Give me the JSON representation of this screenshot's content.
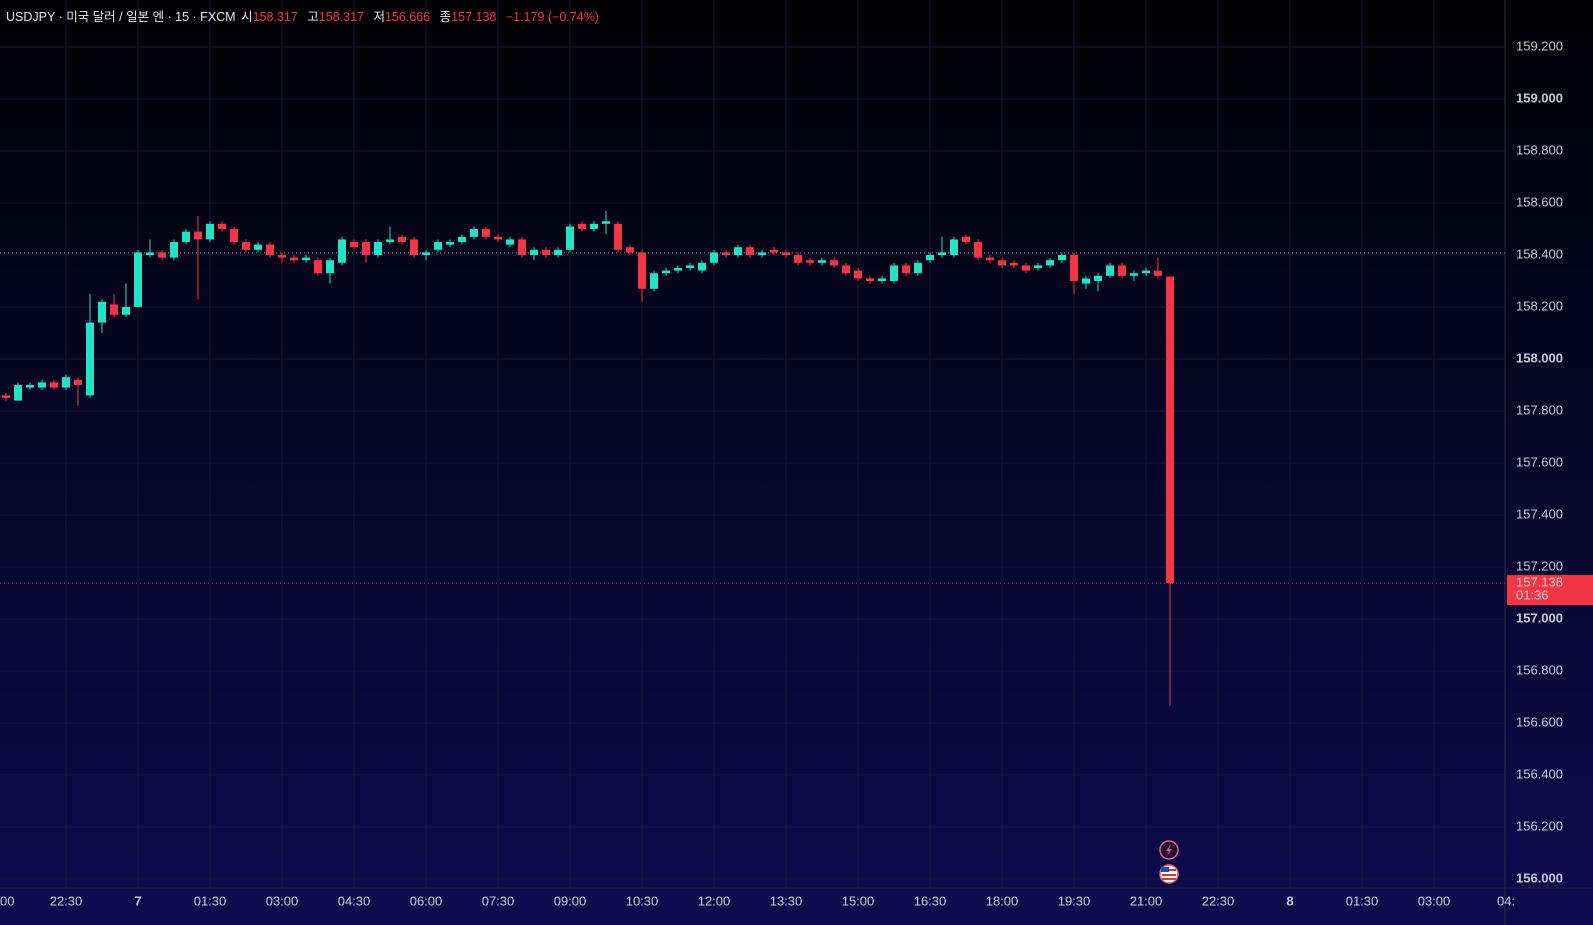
{
  "header": {
    "symbol": "USDJPY · 미국 달러 / 일본 엔 · 15 · FXCM",
    "open_label": "시",
    "high_label": "고",
    "low_label": "저",
    "close_label": "종",
    "change": "−1.179 (−0.74%)"
  },
  "chart_data": {
    "type": "candlestick",
    "up_color": "#22e3c5",
    "down_color": "#f23645",
    "grid": true,
    "x": [
      -2.75,
      -2.5,
      -2.25,
      -2,
      -1.75,
      -1.5,
      -1.25,
      -1,
      -0.75,
      -0.5,
      -0.25,
      0,
      0.25,
      0.5,
      0.75,
      1,
      1.25,
      1.5,
      1.75,
      2,
      2.25,
      2.5,
      2.75,
      3,
      3.25,
      3.5,
      3.75,
      4,
      4.25,
      4.5,
      4.75,
      5,
      5.25,
      5.5,
      5.75,
      6,
      6.25,
      6.5,
      6.75,
      7,
      7.25,
      7.5,
      7.75,
      8,
      8.25,
      8.5,
      8.75,
      9,
      9.25,
      9.5,
      9.75,
      10,
      10.25,
      10.5,
      10.75,
      11,
      11.25,
      11.5,
      11.75,
      12,
      12.25,
      12.5,
      12.75,
      13,
      13.25,
      13.5,
      13.75,
      14,
      14.25,
      14.5,
      14.75,
      15,
      15.25,
      15.5,
      15.75,
      16,
      16.25,
      16.5,
      16.75,
      17,
      17.25,
      17.5,
      17.75,
      18,
      18.25,
      18.5,
      18.75,
      19,
      19.25,
      19.5,
      19.75,
      20,
      20.25,
      20.5,
      20.75,
      21,
      21.25,
      21.5
    ],
    "open": [
      157.86,
      157.84,
      157.89,
      157.89,
      157.91,
      157.89,
      157.92,
      157.86,
      158.14,
      158.21,
      158.17,
      158.2,
      158.4,
      158.41,
      158.39,
      158.45,
      158.49,
      158.46,
      158.52,
      158.5,
      158.45,
      158.42,
      158.44,
      158.4,
      158.39,
      158.38,
      158.38,
      158.33,
      158.37,
      158.45,
      158.45,
      158.4,
      158.45,
      158.47,
      158.46,
      158.4,
      158.42,
      158.44,
      158.45,
      158.47,
      158.5,
      158.47,
      158.44,
      158.46,
      158.4,
      158.42,
      158.4,
      158.42,
      158.52,
      158.5,
      158.52,
      158.52,
      158.43,
      158.41,
      158.27,
      158.33,
      158.34,
      158.35,
      158.34,
      158.37,
      158.41,
      158.4,
      158.43,
      158.4,
      158.42,
      158.41,
      158.4,
      158.38,
      158.37,
      158.38,
      158.36,
      158.34,
      158.31,
      158.3,
      158.3,
      158.36,
      158.33,
      158.38,
      158.4,
      158.4,
      158.47,
      158.45,
      158.39,
      158.38,
      158.37,
      158.36,
      158.35,
      158.36,
      158.38,
      158.4,
      158.29,
      158.3,
      158.32,
      158.36,
      158.32,
      158.33,
      158.34,
      158.317
    ],
    "high": [
      157.87,
      157.91,
      157.91,
      157.92,
      157.92,
      157.94,
      157.93,
      158.25,
      158.23,
      158.25,
      158.29,
      158.42,
      158.46,
      158.42,
      158.46,
      158.5,
      158.55,
      158.53,
      158.53,
      158.51,
      158.46,
      158.45,
      158.45,
      158.41,
      158.4,
      158.4,
      158.39,
      158.39,
      158.47,
      158.46,
      158.46,
      158.46,
      158.51,
      158.48,
      158.47,
      158.42,
      158.46,
      158.46,
      158.48,
      158.51,
      158.51,
      158.48,
      158.47,
      158.47,
      158.43,
      158.43,
      158.43,
      158.52,
      158.53,
      158.53,
      158.57,
      158.53,
      158.44,
      158.42,
      158.34,
      158.35,
      158.36,
      158.37,
      158.38,
      158.42,
      158.42,
      158.44,
      158.44,
      158.42,
      158.43,
      158.42,
      158.41,
      158.39,
      158.39,
      158.39,
      158.37,
      158.35,
      158.32,
      158.32,
      158.37,
      158.37,
      158.38,
      158.41,
      158.47,
      158.47,
      158.48,
      158.46,
      158.4,
      158.39,
      158.38,
      158.37,
      158.37,
      158.39,
      158.41,
      158.41,
      158.32,
      158.33,
      158.37,
      158.37,
      158.34,
      158.35,
      158.39,
      158.317
    ],
    "low": [
      157.84,
      157.84,
      157.88,
      157.88,
      157.88,
      157.88,
      157.82,
      157.85,
      158.1,
      158.16,
      158.16,
      158.2,
      158.39,
      158.38,
      158.38,
      158.44,
      158.23,
      158.45,
      158.49,
      158.44,
      158.41,
      158.41,
      158.39,
      158.37,
      158.37,
      158.37,
      158.32,
      158.29,
      158.36,
      158.42,
      158.37,
      158.39,
      158.44,
      158.44,
      158.39,
      158.38,
      158.41,
      158.43,
      158.44,
      158.46,
      158.46,
      158.45,
      158.43,
      158.39,
      158.38,
      158.39,
      158.39,
      158.41,
      158.49,
      158.49,
      158.48,
      158.41,
      158.4,
      158.22,
      158.26,
      158.32,
      158.33,
      158.34,
      158.33,
      158.36,
      158.39,
      158.39,
      158.39,
      158.39,
      158.4,
      158.39,
      158.36,
      158.36,
      158.36,
      158.35,
      158.32,
      158.3,
      158.29,
      158.29,
      158.29,
      158.32,
      158.32,
      158.37,
      158.39,
      158.39,
      158.44,
      158.38,
      158.37,
      158.35,
      158.35,
      158.33,
      158.34,
      158.35,
      158.37,
      158.25,
      158.27,
      158.26,
      158.31,
      158.31,
      158.3,
      158.32,
      158.31,
      156.666
    ],
    "close": [
      157.85,
      157.9,
      157.9,
      157.91,
      157.89,
      157.93,
      157.9,
      158.14,
      158.22,
      158.17,
      158.2,
      158.41,
      158.41,
      158.39,
      158.45,
      158.49,
      158.46,
      158.52,
      158.5,
      158.45,
      158.42,
      158.44,
      158.4,
      158.39,
      158.38,
      158.39,
      158.33,
      158.38,
      158.46,
      158.43,
      158.4,
      158.45,
      158.46,
      158.45,
      158.4,
      158.41,
      158.45,
      158.45,
      158.47,
      158.5,
      158.47,
      158.46,
      158.46,
      158.4,
      158.42,
      158.4,
      158.42,
      158.51,
      158.5,
      158.52,
      158.53,
      158.42,
      158.41,
      158.27,
      158.33,
      158.34,
      158.35,
      158.36,
      158.37,
      158.41,
      158.4,
      158.43,
      158.4,
      158.41,
      158.41,
      158.4,
      158.37,
      158.37,
      158.38,
      158.36,
      158.33,
      158.31,
      158.3,
      158.31,
      158.36,
      158.33,
      158.37,
      158.4,
      158.41,
      158.46,
      158.45,
      158.39,
      158.38,
      158.36,
      158.36,
      158.34,
      158.36,
      158.38,
      158.4,
      158.3,
      158.31,
      158.32,
      158.36,
      158.32,
      158.33,
      158.34,
      158.32,
      157.138
    ],
    "reference_line": 158.408,
    "countdown": "01:36",
    "xlim": [
      -2.875,
      28.479
    ],
    "xticks": [
      {
        "value": -3,
        "label": "00"
      },
      {
        "value": -1.5,
        "label": "22:30"
      },
      {
        "value": 0,
        "label": "7"
      },
      {
        "value": 1.5,
        "label": "01:30"
      },
      {
        "value": 3,
        "label": "03:00"
      },
      {
        "value": 4.5,
        "label": "04:30"
      },
      {
        "value": 6,
        "label": "06:00"
      },
      {
        "value": 7.5,
        "label": "07:30"
      },
      {
        "value": 9,
        "label": "09:00"
      },
      {
        "value": 10.5,
        "label": "10:30"
      },
      {
        "value": 12,
        "label": "12:00"
      },
      {
        "value": 13.5,
        "label": "13:30"
      },
      {
        "value": 15,
        "label": "15:00"
      },
      {
        "value": 16.5,
        "label": "16:30"
      },
      {
        "value": 18,
        "label": "18:00"
      },
      {
        "value": 19.5,
        "label": "19:30"
      },
      {
        "value": 21,
        "label": "21:00"
      },
      {
        "value": 22.5,
        "label": "22:30"
      },
      {
        "value": 24,
        "label": "8"
      },
      {
        "value": 25.5,
        "label": "01:30"
      },
      {
        "value": 27,
        "label": "03:00"
      },
      {
        "value": 28.5,
        "label": "04:"
      }
    ],
    "ylim": [
      155.965,
      159.381
    ],
    "yticks": [
      {
        "value": 156,
        "label": "156.000"
      },
      {
        "value": 156.2,
        "label": "156.200"
      },
      {
        "value": 156.4,
        "label": "156.400"
      },
      {
        "value": 156.6,
        "label": "156.600"
      },
      {
        "value": 156.8,
        "label": "156.800"
      },
      {
        "value": 157,
        "label": "157.000"
      },
      {
        "value": 157.2,
        "label": "157.200"
      },
      {
        "value": 157.4,
        "label": "157.400"
      },
      {
        "value": 157.6,
        "label": "157.600"
      },
      {
        "value": 157.8,
        "label": "157.800"
      },
      {
        "value": 158,
        "label": "158.000"
      },
      {
        "value": 158.2,
        "label": "158.200"
      },
      {
        "value": 158.4,
        "label": "158.400"
      },
      {
        "value": 158.6,
        "label": "158.600"
      },
      {
        "value": 158.8,
        "label": "158.800"
      },
      {
        "value": 159,
        "label": "159.000"
      },
      {
        "value": 159.2,
        "label": "159.200"
      }
    ]
  }
}
